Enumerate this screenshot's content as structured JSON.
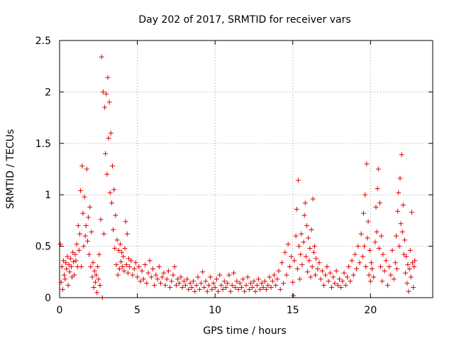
{
  "chart_data": {
    "type": "scatter",
    "title": "Day 202 of 2017, SRMTID for receiver vars",
    "xlabel": "GPS time / hours",
    "ylabel": "SRMTID / TECUs",
    "xlim": [
      0,
      24.0
    ],
    "ylim": [
      0,
      2.5
    ],
    "xticks": [
      0,
      5,
      10,
      15,
      20
    ],
    "yticks": [
      0,
      0.5,
      1,
      1.5,
      2,
      2.5
    ],
    "xtick_labels": [
      "0",
      "5",
      "10",
      "15",
      "20"
    ],
    "ytick_labels": [
      "0",
      "0.5",
      "1",
      "1.5",
      "2",
      "2.5"
    ],
    "grid": true,
    "marker": "plus",
    "color": "#e00000",
    "series": [
      {
        "name": "SRMTID",
        "points": [
          [
            0.05,
            0.52
          ],
          [
            0.1,
            0.15
          ],
          [
            0.15,
            0.3
          ],
          [
            0.2,
            0.08
          ],
          [
            0.25,
            0.36
          ],
          [
            0.3,
            0.22
          ],
          [
            0.35,
            0.18
          ],
          [
            0.4,
            0.34
          ],
          [
            0.45,
            0.28
          ],
          [
            0.5,
            0.4
          ],
          [
            0.55,
            0.12
          ],
          [
            0.6,
            0.32
          ],
          [
            0.65,
            0.25
          ],
          [
            0.7,
            0.38
          ],
          [
            0.75,
            0.3
          ],
          [
            0.8,
            0.2
          ],
          [
            0.85,
            0.44
          ],
          [
            0.9,
            0.35
          ],
          [
            0.95,
            0.22
          ],
          [
            1.0,
            0.42
          ],
          [
            1.05,
            0.36
          ],
          [
            1.1,
            0.52
          ],
          [
            1.15,
            0.3
          ],
          [
            1.2,
            0.7
          ],
          [
            1.25,
            0.46
          ],
          [
            1.3,
            0.62
          ],
          [
            1.35,
            1.04
          ],
          [
            1.4,
            0.3
          ],
          [
            1.45,
            1.28
          ],
          [
            1.5,
            0.82
          ],
          [
            1.55,
            0.5
          ],
          [
            1.6,
            0.98
          ],
          [
            1.65,
            0.6
          ],
          [
            1.7,
            0.7
          ],
          [
            1.75,
            1.25
          ],
          [
            1.8,
            0.55
          ],
          [
            1.85,
            0.78
          ],
          [
            1.9,
            0.42
          ],
          [
            1.95,
            0.88
          ],
          [
            2.0,
            0.3
          ],
          [
            2.05,
            0.64
          ],
          [
            2.1,
            0.2
          ],
          [
            2.15,
            0.34
          ],
          [
            2.2,
            0.1
          ],
          [
            2.25,
            0.26
          ],
          [
            2.3,
            0.15
          ],
          [
            2.35,
            0.22
          ],
          [
            2.4,
            0.05
          ],
          [
            2.45,
            0.3
          ],
          [
            2.5,
            0.18
          ],
          [
            2.55,
            0.42
          ],
          [
            2.6,
            0.12
          ],
          [
            2.65,
            0.76
          ],
          [
            2.7,
            2.34
          ],
          [
            2.75,
            0.0
          ],
          [
            2.8,
            2.0
          ],
          [
            2.85,
            0.62
          ],
          [
            2.9,
            1.85
          ],
          [
            2.95,
            1.4
          ],
          [
            3.0,
            1.98
          ],
          [
            3.05,
            1.2
          ],
          [
            3.1,
            2.14
          ],
          [
            3.15,
            1.55
          ],
          [
            3.2,
            1.9
          ],
          [
            3.25,
            1.02
          ],
          [
            3.3,
            1.6
          ],
          [
            3.35,
            0.92
          ],
          [
            3.4,
            1.28
          ],
          [
            3.45,
            0.66
          ],
          [
            3.5,
            1.05
          ],
          [
            3.55,
            0.48
          ],
          [
            3.6,
            0.8
          ],
          [
            3.65,
            0.32
          ],
          [
            3.7,
            0.56
          ],
          [
            3.75,
            0.22
          ],
          [
            3.8,
            0.46
          ],
          [
            3.85,
            0.28
          ],
          [
            3.9,
            0.52
          ],
          [
            3.95,
            0.35
          ],
          [
            4.0,
            0.44
          ],
          [
            4.05,
            0.3
          ],
          [
            4.1,
            0.4
          ],
          [
            4.15,
            0.26
          ],
          [
            4.2,
            0.48
          ],
          [
            4.25,
            0.74
          ],
          [
            4.3,
            0.32
          ],
          [
            4.35,
            0.62
          ],
          [
            4.4,
            0.24
          ],
          [
            4.45,
            0.38
          ],
          [
            4.5,
            0.3
          ],
          [
            4.6,
            0.36
          ],
          [
            4.7,
            0.22
          ],
          [
            4.8,
            0.28
          ],
          [
            4.9,
            0.34
          ],
          [
            5.0,
            0.2
          ],
          [
            5.1,
            0.3
          ],
          [
            5.2,
            0.16
          ],
          [
            5.3,
            0.26
          ],
          [
            5.4,
            0.18
          ],
          [
            5.5,
            0.32
          ],
          [
            5.6,
            0.14
          ],
          [
            5.7,
            0.24
          ],
          [
            5.8,
            0.36
          ],
          [
            5.9,
            0.2
          ],
          [
            6.0,
            0.28
          ],
          [
            6.1,
            0.12
          ],
          [
            6.2,
            0.22
          ],
          [
            6.3,
            0.18
          ],
          [
            6.4,
            0.3
          ],
          [
            6.5,
            0.14
          ],
          [
            6.6,
            0.2
          ],
          [
            6.7,
            0.24
          ],
          [
            6.8,
            0.12
          ],
          [
            6.9,
            0.18
          ],
          [
            7.0,
            0.26
          ],
          [
            7.1,
            0.1
          ],
          [
            7.2,
            0.16
          ],
          [
            7.3,
            0.22
          ],
          [
            7.4,
            0.3
          ],
          [
            7.5,
            0.12
          ],
          [
            7.6,
            0.18
          ],
          [
            7.7,
            0.14
          ],
          [
            7.8,
            0.2
          ],
          [
            7.9,
            0.1
          ],
          [
            8.0,
            0.16
          ],
          [
            8.1,
            0.12
          ],
          [
            8.2,
            0.18
          ],
          [
            8.3,
            0.08
          ],
          [
            8.4,
            0.14
          ],
          [
            8.5,
            0.1
          ],
          [
            8.6,
            0.16
          ],
          [
            8.7,
            0.06
          ],
          [
            8.8,
            0.12
          ],
          [
            8.9,
            0.2
          ],
          [
            9.0,
            0.08
          ],
          [
            9.1,
            0.14
          ],
          [
            9.2,
            0.25
          ],
          [
            9.3,
            0.1
          ],
          [
            9.4,
            0.16
          ],
          [
            9.5,
            0.06
          ],
          [
            9.6,
            0.12
          ],
          [
            9.7,
            0.2
          ],
          [
            9.8,
            0.08
          ],
          [
            9.9,
            0.14
          ],
          [
            10.0,
            0.1
          ],
          [
            10.1,
            0.18
          ],
          [
            10.2,
            0.06
          ],
          [
            10.3,
            0.22
          ],
          [
            10.4,
            0.12
          ],
          [
            10.5,
            0.08
          ],
          [
            10.6,
            0.16
          ],
          [
            10.7,
            0.1
          ],
          [
            10.8,
            0.14
          ],
          [
            10.9,
            0.22
          ],
          [
            11.0,
            0.06
          ],
          [
            11.1,
            0.12
          ],
          [
            11.2,
            0.24
          ],
          [
            11.3,
            0.1
          ],
          [
            11.4,
            0.16
          ],
          [
            11.5,
            0.08
          ],
          [
            11.6,
            0.14
          ],
          [
            11.7,
            0.1
          ],
          [
            11.8,
            0.18
          ],
          [
            11.9,
            0.06
          ],
          [
            12.0,
            0.12
          ],
          [
            12.1,
            0.2
          ],
          [
            12.2,
            0.08
          ],
          [
            12.3,
            0.14
          ],
          [
            12.4,
            0.1
          ],
          [
            12.5,
            0.16
          ],
          [
            12.6,
            0.06
          ],
          [
            12.7,
            0.12
          ],
          [
            12.8,
            0.18
          ],
          [
            12.9,
            0.08
          ],
          [
            13.0,
            0.14
          ],
          [
            13.1,
            0.1
          ],
          [
            13.2,
            0.16
          ],
          [
            13.3,
            0.08
          ],
          [
            13.4,
            0.12
          ],
          [
            13.5,
            0.2
          ],
          [
            13.6,
            0.1
          ],
          [
            13.7,
            0.16
          ],
          [
            13.8,
            0.22
          ],
          [
            13.9,
            0.12
          ],
          [
            14.0,
            0.18
          ],
          [
            14.1,
            0.26
          ],
          [
            14.2,
            0.08
          ],
          [
            14.3,
            0.34
          ],
          [
            14.4,
            0.14
          ],
          [
            14.5,
            0.44
          ],
          [
            14.6,
            0.22
          ],
          [
            14.7,
            0.52
          ],
          [
            14.8,
            0.3
          ],
          [
            14.9,
            0.4
          ],
          [
            15.0,
            0.15
          ],
          [
            15.05,
            0.02
          ],
          [
            15.1,
            0.36
          ],
          [
            15.2,
            0.6
          ],
          [
            15.25,
            0.86
          ],
          [
            15.3,
            0.28
          ],
          [
            15.35,
            1.14
          ],
          [
            15.4,
            0.5
          ],
          [
            15.45,
            0.18
          ],
          [
            15.5,
            0.42
          ],
          [
            15.55,
            0.62
          ],
          [
            15.6,
            0.32
          ],
          [
            15.7,
            0.54
          ],
          [
            15.75,
            0.8
          ],
          [
            15.8,
            0.92
          ],
          [
            15.85,
            0.4
          ],
          [
            15.9,
            0.7
          ],
          [
            15.95,
            0.25
          ],
          [
            16.0,
            0.58
          ],
          [
            16.05,
            0.36
          ],
          [
            16.1,
            0.48
          ],
          [
            16.15,
            0.2
          ],
          [
            16.2,
            0.66
          ],
          [
            16.25,
            0.3
          ],
          [
            16.3,
            0.96
          ],
          [
            16.35,
            0.44
          ],
          [
            16.4,
            0.5
          ],
          [
            16.45,
            0.22
          ],
          [
            16.5,
            0.38
          ],
          [
            16.6,
            0.28
          ],
          [
            16.7,
            0.34
          ],
          [
            16.8,
            0.18
          ],
          [
            16.9,
            0.26
          ],
          [
            17.0,
            0.12
          ],
          [
            17.1,
            0.22
          ],
          [
            17.2,
            0.3
          ],
          [
            17.3,
            0.16
          ],
          [
            17.4,
            0.24
          ],
          [
            17.5,
            0.1
          ],
          [
            17.6,
            0.2
          ],
          [
            17.7,
            0.14
          ],
          [
            17.8,
            0.26
          ],
          [
            17.9,
            0.12
          ],
          [
            18.0,
            0.18
          ],
          [
            18.1,
            0.1
          ],
          [
            18.2,
            0.16
          ],
          [
            18.3,
            0.24
          ],
          [
            18.4,
            0.12
          ],
          [
            18.5,
            0.2
          ],
          [
            18.6,
            0.3
          ],
          [
            18.7,
            0.16
          ],
          [
            18.8,
            0.36
          ],
          [
            18.9,
            0.22
          ],
          [
            19.0,
            0.42
          ],
          [
            19.1,
            0.28
          ],
          [
            19.2,
            0.5
          ],
          [
            19.3,
            0.34
          ],
          [
            19.4,
            0.62
          ],
          [
            19.5,
            0.4
          ],
          [
            19.55,
            0.82
          ],
          [
            19.6,
            0.5
          ],
          [
            19.65,
            1.0
          ],
          [
            19.7,
            0.3
          ],
          [
            19.75,
            1.3
          ],
          [
            19.8,
            0.58
          ],
          [
            19.85,
            0.74
          ],
          [
            19.9,
            0.22
          ],
          [
            19.95,
            0.46
          ],
          [
            20.0,
            0.16
          ],
          [
            20.05,
            0.34
          ],
          [
            20.1,
            0.28
          ],
          [
            20.2,
            0.2
          ],
          [
            20.3,
            0.54
          ],
          [
            20.35,
            0.88
          ],
          [
            20.4,
            0.64
          ],
          [
            20.45,
            1.06
          ],
          [
            20.5,
            1.25
          ],
          [
            20.55,
            0.48
          ],
          [
            20.6,
            0.92
          ],
          [
            20.65,
            0.3
          ],
          [
            20.7,
            0.6
          ],
          [
            20.75,
            0.16
          ],
          [
            20.8,
            0.42
          ],
          [
            20.9,
            0.26
          ],
          [
            21.0,
            0.36
          ],
          [
            21.1,
            0.12
          ],
          [
            21.2,
            0.3
          ],
          [
            21.3,
            0.22
          ],
          [
            21.4,
            0.46
          ],
          [
            21.5,
            0.18
          ],
          [
            21.6,
            0.34
          ],
          [
            21.65,
            0.6
          ],
          [
            21.7,
            0.28
          ],
          [
            21.75,
            0.84
          ],
          [
            21.8,
            1.02
          ],
          [
            21.85,
            0.5
          ],
          [
            21.9,
            1.16
          ],
          [
            21.95,
            0.72
          ],
          [
            22.0,
            1.39
          ],
          [
            22.05,
            0.64
          ],
          [
            22.1,
            0.9
          ],
          [
            22.15,
            0.42
          ],
          [
            22.2,
            0.56
          ],
          [
            22.25,
            0.24
          ],
          [
            22.3,
            0.4
          ],
          [
            22.35,
            0.14
          ],
          [
            22.4,
            0.32
          ],
          [
            22.45,
            0.06
          ],
          [
            22.5,
            0.28
          ],
          [
            22.55,
            0.46
          ],
          [
            22.6,
            0.2
          ],
          [
            22.65,
            0.83
          ],
          [
            22.7,
            0.34
          ],
          [
            22.75,
            0.1
          ],
          [
            22.8,
            0.3
          ],
          [
            22.85,
            0.36
          ]
        ]
      }
    ]
  }
}
